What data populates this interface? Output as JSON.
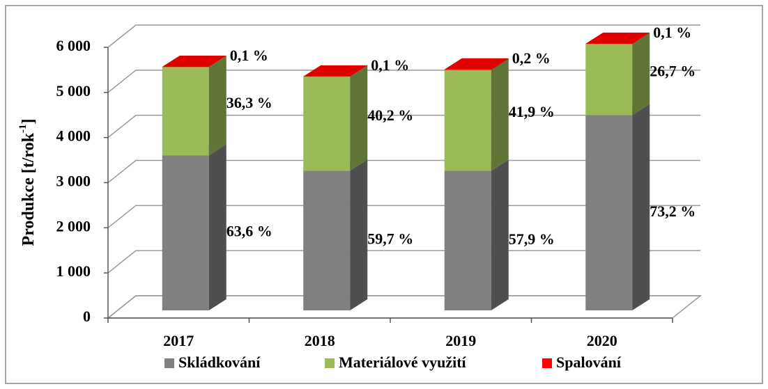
{
  "chart_data": {
    "type": "bar3d_stacked",
    "ylabel_parts": [
      "Produkce [t/rok",
      "-1",
      "]"
    ],
    "categories": [
      "2017",
      "2018",
      "2019",
      "2020"
    ],
    "series": [
      {
        "name": "Skládkování",
        "color": "#808080",
        "values": [
          3434,
          3096,
          3092,
          4326
        ],
        "value_labels": [
          "63,6 %",
          "59,7 %",
          "57,9 %",
          "73,2 %"
        ]
      },
      {
        "name": "Materiálové využití",
        "color": "#9bbb59",
        "values": [
          1960,
          2084,
          2237,
          1578
        ],
        "value_labels": [
          "36,3 %",
          "40,2 %",
          "41,9 %",
          "26,7 %"
        ]
      },
      {
        "name": "Spalování",
        "color": "#ff0000",
        "values": [
          5,
          5,
          11,
          6
        ],
        "value_labels": [
          "0,1 %",
          "0,1 %",
          "0,2 %",
          "0,1 %"
        ]
      }
    ],
    "ylim": [
      0,
      6000
    ],
    "yticks": [
      0,
      {
        "value": 1000,
        "label": "1 000"
      },
      {
        "value": 2000,
        "label": "2 000"
      },
      {
        "value": 3000,
        "label": "3 000"
      },
      {
        "value": 4000,
        "label": "4 000"
      },
      {
        "value": 5000,
        "label": "5 000"
      },
      {
        "value": 6000,
        "label": "6 000"
      }
    ],
    "grid": true,
    "legend": "bottom"
  }
}
